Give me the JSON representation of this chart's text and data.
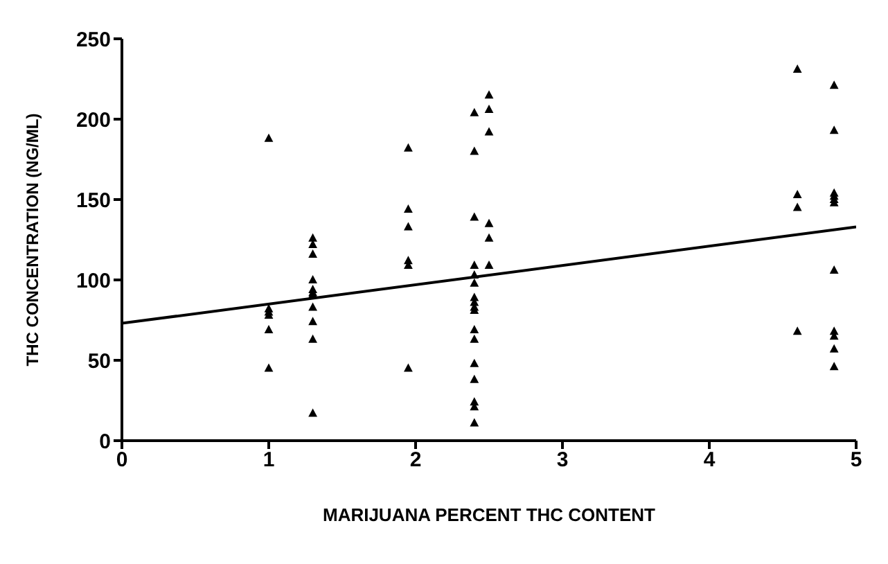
{
  "chart_data": {
    "type": "scatter",
    "xlabel": "MARIJUANA  PERCENT  THC  CONTENT",
    "ylabel": "THC CONCENTRATION (NG/ML)",
    "xlim": [
      0,
      5
    ],
    "xticks": [
      0,
      1,
      2,
      3,
      4,
      5
    ],
    "ylim": [
      0,
      250
    ],
    "yticks": [
      0,
      50,
      100,
      150,
      200,
      250
    ],
    "grid": false,
    "legend": false,
    "marker": "triangle",
    "series": [
      {
        "color": "#000000",
        "x": [
          1,
          1,
          1,
          1,
          1,
          1,
          1.3,
          1.3,
          1.3,
          1.3,
          1.3,
          1.3,
          1.3,
          1.3,
          1.3,
          1.3,
          1.3,
          1.95,
          1.95,
          1.95,
          1.95,
          1.95,
          1.95,
          2.4,
          2.4,
          2.4,
          2.4,
          2.4,
          2.4,
          2.4,
          2.4,
          2.4,
          2.4,
          2.4,
          2.4,
          2.4,
          2.4,
          2.4,
          2.4,
          2.4,
          2.5,
          2.5,
          2.5,
          2.5,
          2.5,
          2.5,
          4.6,
          4.6,
          4.6,
          4.6,
          4.85,
          4.85,
          4.85,
          4.85,
          4.85,
          4.85,
          4.85,
          4.85,
          4.85,
          4.85,
          4.85
        ],
        "values": [
          188,
          82,
          80,
          78,
          69,
          45,
          126,
          122,
          116,
          100,
          94,
          92,
          91,
          83,
          74,
          63,
          17,
          182,
          144,
          133,
          112,
          109,
          45,
          204,
          180,
          139,
          109,
          103,
          98,
          89,
          86,
          83,
          81,
          69,
          63,
          48,
          38,
          24,
          21,
          11,
          215,
          206,
          192,
          135,
          126,
          109,
          231,
          153,
          145,
          68,
          221,
          193,
          154,
          152,
          150,
          148,
          106,
          68,
          65,
          57,
          46
        ]
      },
      {
        "type": "line",
        "color": "#000000",
        "marker": "none",
        "x": [
          0,
          5
        ],
        "values": [
          73,
          133
        ]
      }
    ]
  }
}
